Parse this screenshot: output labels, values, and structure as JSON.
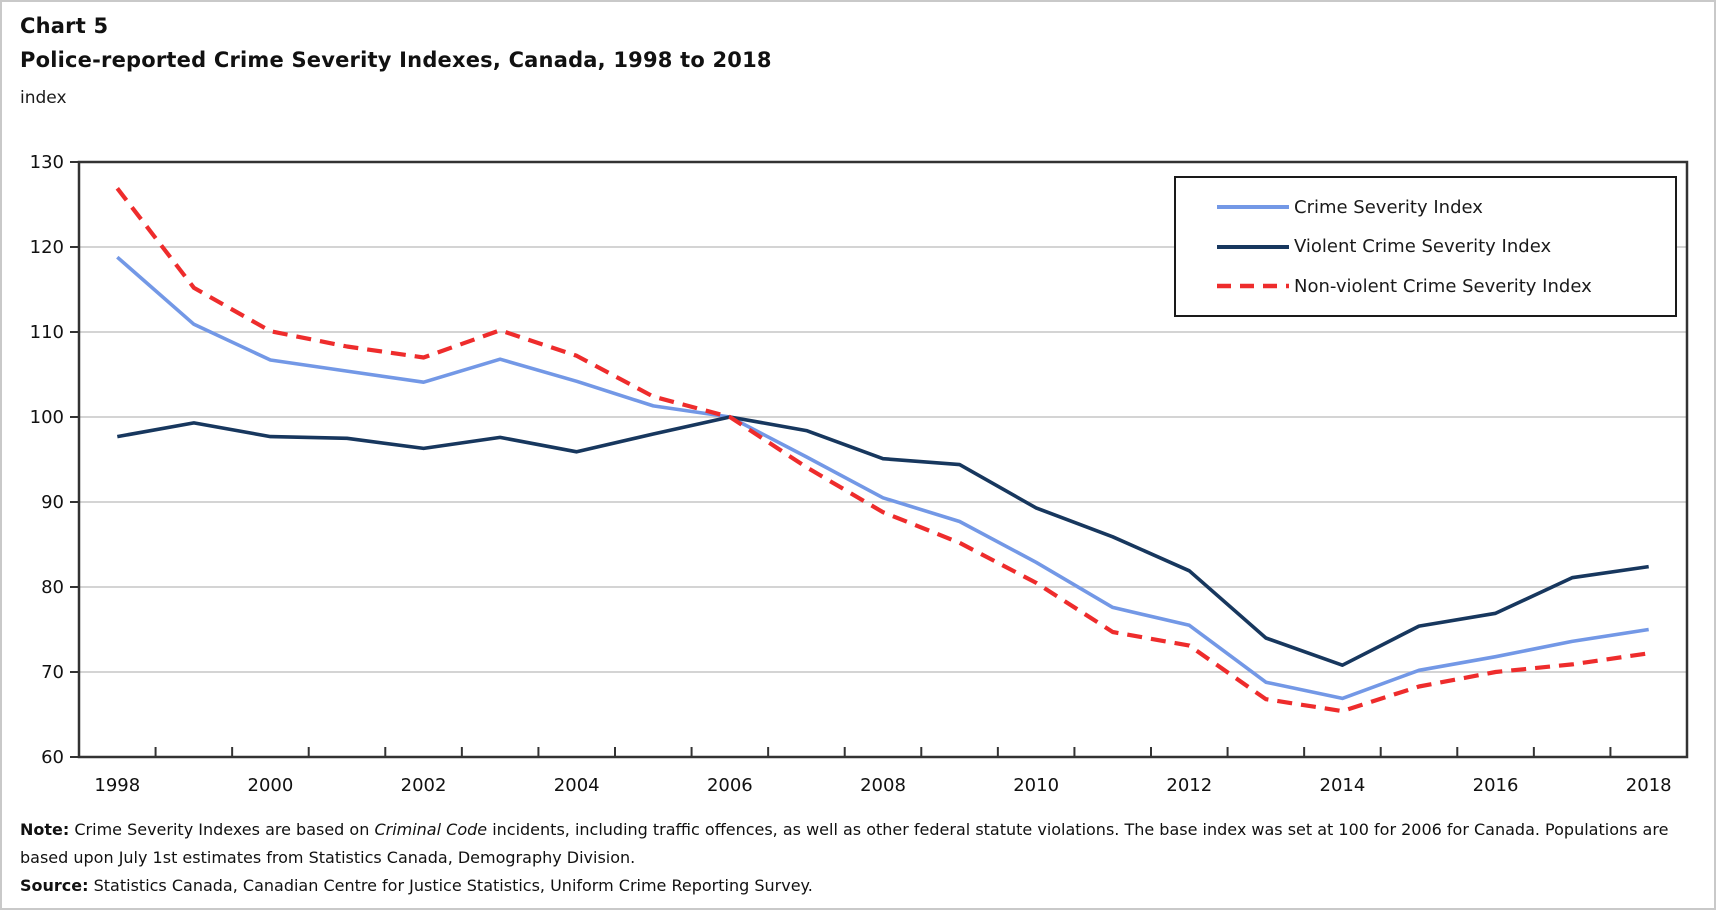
{
  "header": {
    "chart_number": "Chart 5",
    "title": "Police-reported Crime Severity Indexes, Canada, 1998 to 2018",
    "unit_label": "index"
  },
  "note": {
    "label": "Note:",
    "text_before_italic": "Crime Severity Indexes are based on ",
    "italic_text": "Criminal Code",
    "text_after_italic": " incidents, including traffic offences, as well as other federal statute violations. The base index was set at 100 for 2006 for Canada. Populations are based upon July 1st estimates from Statistics Canada, Demography Division."
  },
  "source": {
    "label": "Source:",
    "text": "Statistics Canada, Canadian Centre for Justice Statistics, Uniform Crime Reporting Survey."
  },
  "colors": {
    "csi_line": "#7398E6",
    "violent_line": "#17375E",
    "nonviolent_line": "#EE2C2C",
    "gridline": "#c6c6c6",
    "axis_border": "#333333",
    "text": "#111111"
  },
  "chart_data": {
    "type": "line",
    "title": "Chart 5",
    "subtitle": "Police-reported Crime Severity Indexes, Canada, 1998 to 2018",
    "xlabel": "",
    "ylabel": "index",
    "ylim": [
      60,
      130
    ],
    "yticks": [
      60,
      70,
      80,
      90,
      100,
      110,
      120,
      130
    ],
    "grid": "horizontal",
    "legend_position": "top-right",
    "x": [
      1998,
      1999,
      2000,
      2001,
      2002,
      2003,
      2004,
      2005,
      2006,
      2007,
      2008,
      2009,
      2010,
      2011,
      2012,
      2013,
      2014,
      2015,
      2016,
      2017,
      2018
    ],
    "xtick_labels": [
      "1998",
      "2000",
      "2002",
      "2004",
      "2006",
      "2008",
      "2010",
      "2012",
      "2014",
      "2016",
      "2018"
    ],
    "series": [
      {
        "name": "Crime Severity Index",
        "color": "#7398E6",
        "style": "solid",
        "values": [
          118.8,
          110.9,
          106.7,
          105.4,
          104.1,
          106.8,
          104.2,
          101.3,
          100.0,
          95.3,
          90.5,
          87.7,
          82.9,
          77.6,
          75.5,
          68.8,
          66.9,
          70.2,
          71.8,
          73.6,
          75.0
        ]
      },
      {
        "name": "Violent Crime Severity Index",
        "color": "#17375E",
        "style": "solid",
        "values": [
          97.7,
          99.3,
          97.7,
          97.5,
          96.3,
          97.6,
          95.9,
          98.0,
          100.0,
          98.4,
          95.1,
          94.4,
          89.3,
          85.9,
          81.9,
          74.0,
          70.8,
          75.4,
          76.9,
          81.1,
          82.4
        ]
      },
      {
        "name": "Non-violent Crime Severity Index",
        "color": "#EE2C2C",
        "style": "dashed",
        "values": [
          126.9,
          115.2,
          110.1,
          108.3,
          107.0,
          110.2,
          107.2,
          102.4,
          100.0,
          94.1,
          88.8,
          85.2,
          80.5,
          74.7,
          73.1,
          66.8,
          65.4,
          68.3,
          70.0,
          70.9,
          72.2
        ]
      }
    ]
  }
}
